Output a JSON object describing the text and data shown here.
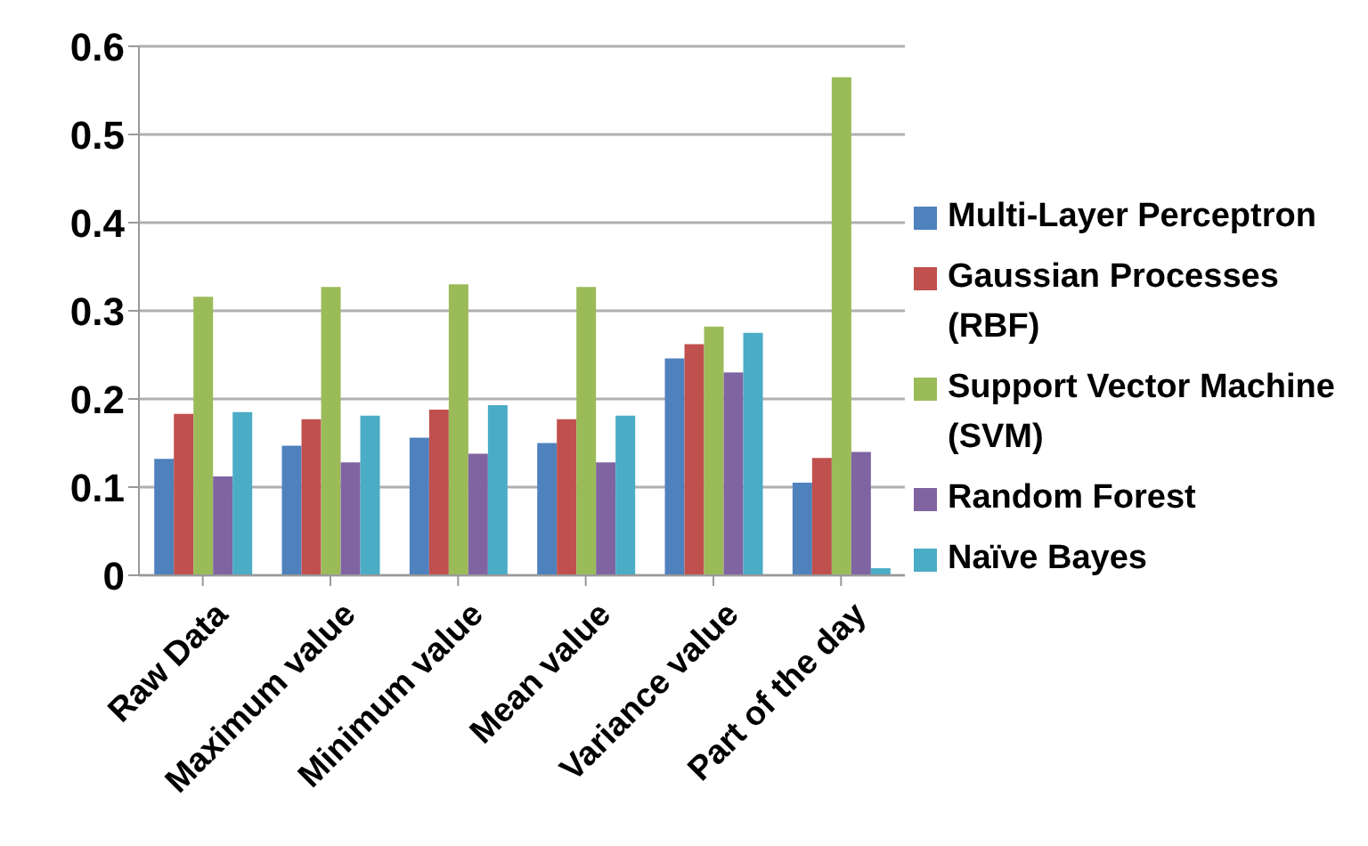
{
  "chart_data": {
    "type": "bar",
    "categories": [
      "Raw Data",
      "Maximum value",
      "Minimum value",
      "Mean value",
      "Variance value",
      "Part of the day"
    ],
    "series": [
      {
        "name": "Multi-Layer Perceptron",
        "color": "#4f81bd",
        "values": [
          0.132,
          0.147,
          0.156,
          0.15,
          0.246,
          0.105
        ]
      },
      {
        "name": "Gaussian Processes (RBF)",
        "color": "#c0504d",
        "values": [
          0.183,
          0.177,
          0.188,
          0.177,
          0.262,
          0.133
        ]
      },
      {
        "name": "Support Vector Machine (SVM)",
        "color": "#9bbb59",
        "values": [
          0.316,
          0.327,
          0.33,
          0.327,
          0.282,
          0.565
        ]
      },
      {
        "name": "Random Forest",
        "color": "#8064a2",
        "values": [
          0.112,
          0.128,
          0.138,
          0.128,
          0.23,
          0.14
        ]
      },
      {
        "name": "Naïve Bayes",
        "color": "#4bacc6",
        "values": [
          0.185,
          0.181,
          0.193,
          0.181,
          0.275,
          0.008
        ]
      }
    ],
    "ylim": [
      0,
      0.6
    ],
    "yticks": [
      0,
      0.1,
      0.2,
      0.3,
      0.4,
      0.5,
      0.6
    ],
    "grid": "y",
    "legend": "right"
  }
}
